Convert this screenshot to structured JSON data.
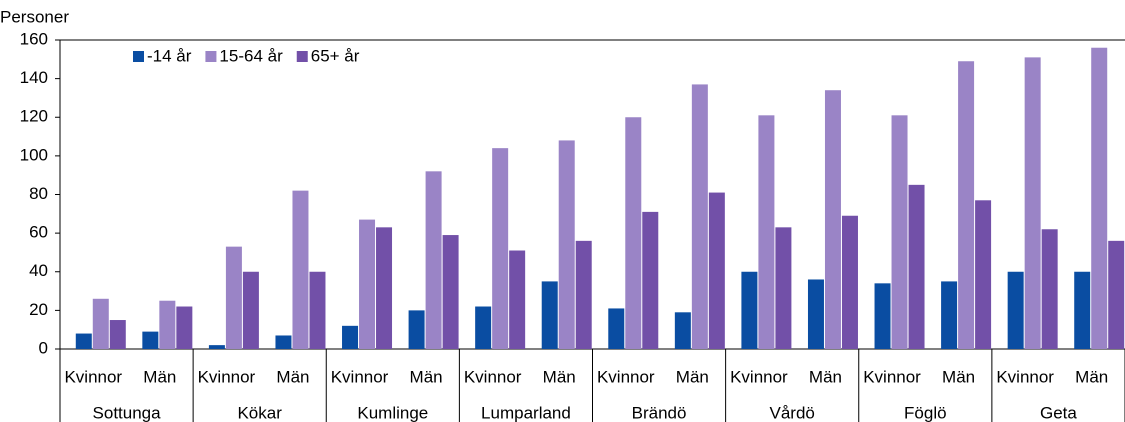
{
  "chart_data": {
    "type": "bar",
    "ylabel": "Personer",
    "categories": [
      "Kvinnor",
      "Män",
      "Kvinnor",
      "Män",
      "Kvinnor",
      "Män",
      "Kvinnor",
      "Män",
      "Kvinnor",
      "Män",
      "Kvinnor",
      "Män",
      "Kvinnor",
      "Män",
      "Kvinnor",
      "Män"
    ],
    "groups": [
      "Sottunga",
      "Kökar",
      "Kumlinge",
      "Lumparland",
      "Brändö",
      "Vårdö",
      "Föglö",
      "Geta"
    ],
    "series": [
      {
        "name": "-14 år",
        "color": "#0a4da2",
        "values": [
          8,
          9,
          2,
          7,
          12,
          20,
          22,
          35,
          21,
          19,
          40,
          36,
          34,
          35,
          40,
          40
        ]
      },
      {
        "name": "15-64 år",
        "color": "#9a84c6",
        "values": [
          26,
          25,
          53,
          82,
          67,
          92,
          104,
          108,
          120,
          137,
          121,
          134,
          121,
          149,
          151,
          156
        ]
      },
      {
        "name": "65+ år",
        "color": "#7250a8",
        "values": [
          15,
          22,
          40,
          40,
          63,
          59,
          51,
          56,
          71,
          81,
          63,
          69,
          85,
          77,
          62,
          56
        ]
      }
    ],
    "ylim": [
      0,
      160
    ],
    "yticks": [
      0,
      20,
      40,
      60,
      80,
      100,
      120,
      140,
      160
    ],
    "legend": "top-left"
  }
}
